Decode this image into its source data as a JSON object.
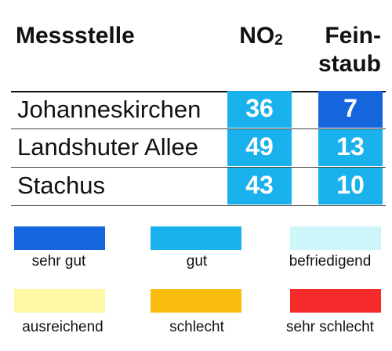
{
  "table": {
    "headers": {
      "station": "Messstelle",
      "no2_base": "NO",
      "no2_sub": "2",
      "fs_line1": "Fein-",
      "fs_line2": "staub"
    },
    "rows": [
      {
        "station": "Johanneskirchen",
        "no2": "36",
        "feinstaub": "7",
        "no2_color": "#1ab2ec",
        "fs_color": "#1566dd"
      },
      {
        "station": "Landshuter Allee",
        "no2": "49",
        "feinstaub": "13",
        "no2_color": "#1ab2ec",
        "fs_color": "#1ab2ec"
      },
      {
        "station": "Stachus",
        "no2": "43",
        "feinstaub": "10",
        "no2_color": "#1ab2ec",
        "fs_color": "#1ab2ec"
      }
    ]
  },
  "legend": [
    {
      "label": "sehr gut",
      "color": "#1566dd"
    },
    {
      "label": "gut",
      "color": "#1ab2ec"
    },
    {
      "label": "befriedigend",
      "color": "#cdf6fb"
    },
    {
      "label": "ausreichend",
      "color": "#fdf7a6"
    },
    {
      "label": "schlecht",
      "color": "#f8bd0f"
    },
    {
      "label": "sehr schlecht",
      "color": "#f52b2b"
    }
  ]
}
